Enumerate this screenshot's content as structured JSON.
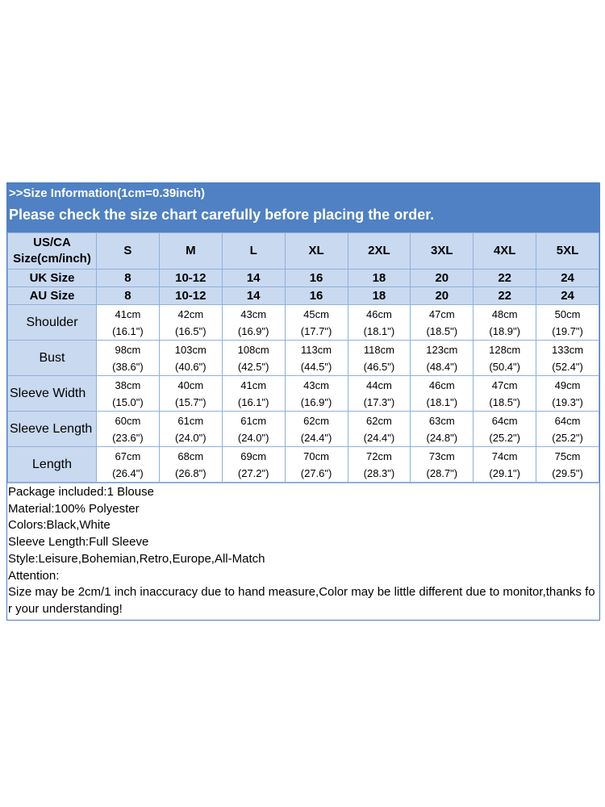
{
  "header": {
    "info": ">>Size Information(1cm=0.39inch)",
    "notice": "Please check the size chart carefully before placing the order."
  },
  "table": {
    "corner_line1": "US/CA",
    "corner_line2": "Size(cm/inch)",
    "sizes": [
      "S",
      "M",
      "L",
      "XL",
      "2XL",
      "3XL",
      "4XL",
      "5XL"
    ],
    "uk": {
      "label": "UK Size",
      "values": [
        "8",
        "10-12",
        "14",
        "16",
        "18",
        "20",
        "22",
        "24"
      ]
    },
    "au": {
      "label": "AU Size",
      "values": [
        "8",
        "10-12",
        "14",
        "16",
        "18",
        "20",
        "22",
        "24"
      ]
    },
    "rows": [
      {
        "label": "Shoulder",
        "cm": [
          "41cm",
          "42cm",
          "43cm",
          "45cm",
          "46cm",
          "47cm",
          "48cm",
          "50cm"
        ],
        "inch": [
          "(16.1\")",
          "(16.5\")",
          "(16.9\")",
          "(17.7\")",
          "(18.1\")",
          "(18.5\")",
          "(18.9\")",
          "(19.7\")"
        ]
      },
      {
        "label": "Bust",
        "cm": [
          "98cm",
          "103cm",
          "108cm",
          "113cm",
          "118cm",
          "123cm",
          "128cm",
          "133cm"
        ],
        "inch": [
          "(38.6\")",
          "(40.6\")",
          "(42.5\")",
          "(44.5\")",
          "(46.5\")",
          "(48.4\")",
          "(50.4\")",
          "(52.4\")"
        ]
      },
      {
        "label": "Sleeve Width",
        "cm": [
          "38cm",
          "40cm",
          "41cm",
          "43cm",
          "44cm",
          "46cm",
          "47cm",
          "49cm"
        ],
        "inch": [
          "(15.0\")",
          "(15.7\")",
          "(16.1\")",
          "(16.9\")",
          "(17.3\")",
          "(18.1\")",
          "(18.5\")",
          "(19.3\")"
        ]
      },
      {
        "label": "Sleeve Length",
        "cm": [
          "60cm",
          "61cm",
          "61cm",
          "62cm",
          "62cm",
          "63cm",
          "64cm",
          "64cm"
        ],
        "inch": [
          "(23.6\")",
          "(24.0\")",
          "(24.0\")",
          "(24.4\")",
          "(24.4\")",
          "(24.8\")",
          "(25.2\")",
          "(25.2\")"
        ]
      },
      {
        "label": "Length",
        "cm": [
          "67cm",
          "68cm",
          "69cm",
          "70cm",
          "72cm",
          "73cm",
          "74cm",
          "75cm"
        ],
        "inch": [
          "(26.4\")",
          "(26.8\")",
          "(27.2\")",
          "(27.6\")",
          "(28.3\")",
          "(28.7\")",
          "(29.1\")",
          "(29.5\")"
        ]
      }
    ]
  },
  "notes": [
    "Package included:1 Blouse",
    "Material:100% Polyester",
    "Colors:Black,White",
    "Sleeve Length:Full Sleeve",
    "Style:Leisure,Bohemian,Retro,Europe,All-Match",
    "Attention:",
    "Size may be 2cm/1 inch inaccuracy due to hand measure,Color may be little different due to monitor,thanks for your understanding!"
  ]
}
